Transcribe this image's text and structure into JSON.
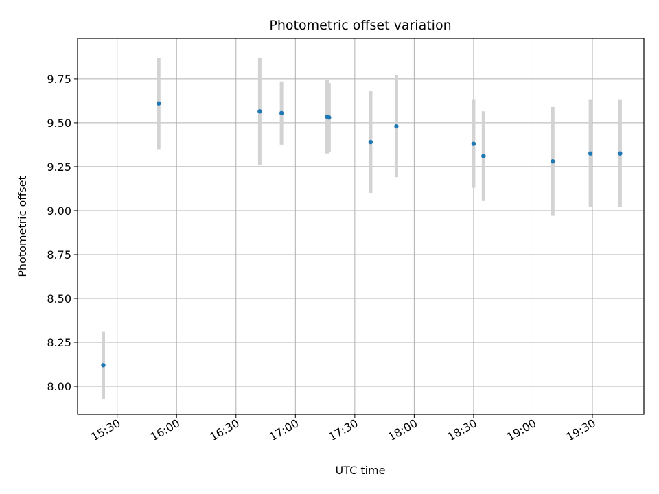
{
  "chart_data": {
    "type": "scatter",
    "title": "Photometric offset variation",
    "xlabel": "UTC time",
    "ylabel": "Photometric offset",
    "x_axis_type": "time",
    "xlim": [
      "15:10",
      "19:56"
    ],
    "ylim": [
      7.84,
      9.98
    ],
    "x_ticks": [
      "15:30",
      "16:00",
      "16:30",
      "17:00",
      "17:30",
      "18:00",
      "18:30",
      "19:00",
      "19:30"
    ],
    "y_ticks": [
      8.0,
      8.25,
      8.5,
      8.75,
      9.0,
      9.25,
      9.5,
      9.75
    ],
    "grid": true,
    "point_color": "#1f77b4",
    "errorbar_color": "#d3d3d3",
    "points": [
      {
        "x": "15:23",
        "y": 8.12,
        "err": 0.19
      },
      {
        "x": "15:51",
        "y": 9.61,
        "err": 0.26
      },
      {
        "x": "16:42",
        "y": 9.565,
        "err": 0.305
      },
      {
        "x": "16:53",
        "y": 9.555,
        "err": 0.18
      },
      {
        "x": "17:16",
        "y": 9.535,
        "err": 0.21
      },
      {
        "x": "17:17",
        "y": 9.53,
        "err": 0.195
      },
      {
        "x": "17:38",
        "y": 9.39,
        "err": 0.29
      },
      {
        "x": "17:51",
        "y": 9.48,
        "err": 0.29
      },
      {
        "x": "18:30",
        "y": 9.38,
        "err": 0.25
      },
      {
        "x": "18:35",
        "y": 9.31,
        "err": 0.255
      },
      {
        "x": "19:10",
        "y": 9.28,
        "err": 0.31
      },
      {
        "x": "19:29",
        "y": 9.325,
        "err": 0.305
      },
      {
        "x": "19:44",
        "y": 9.325,
        "err": 0.305
      }
    ]
  }
}
